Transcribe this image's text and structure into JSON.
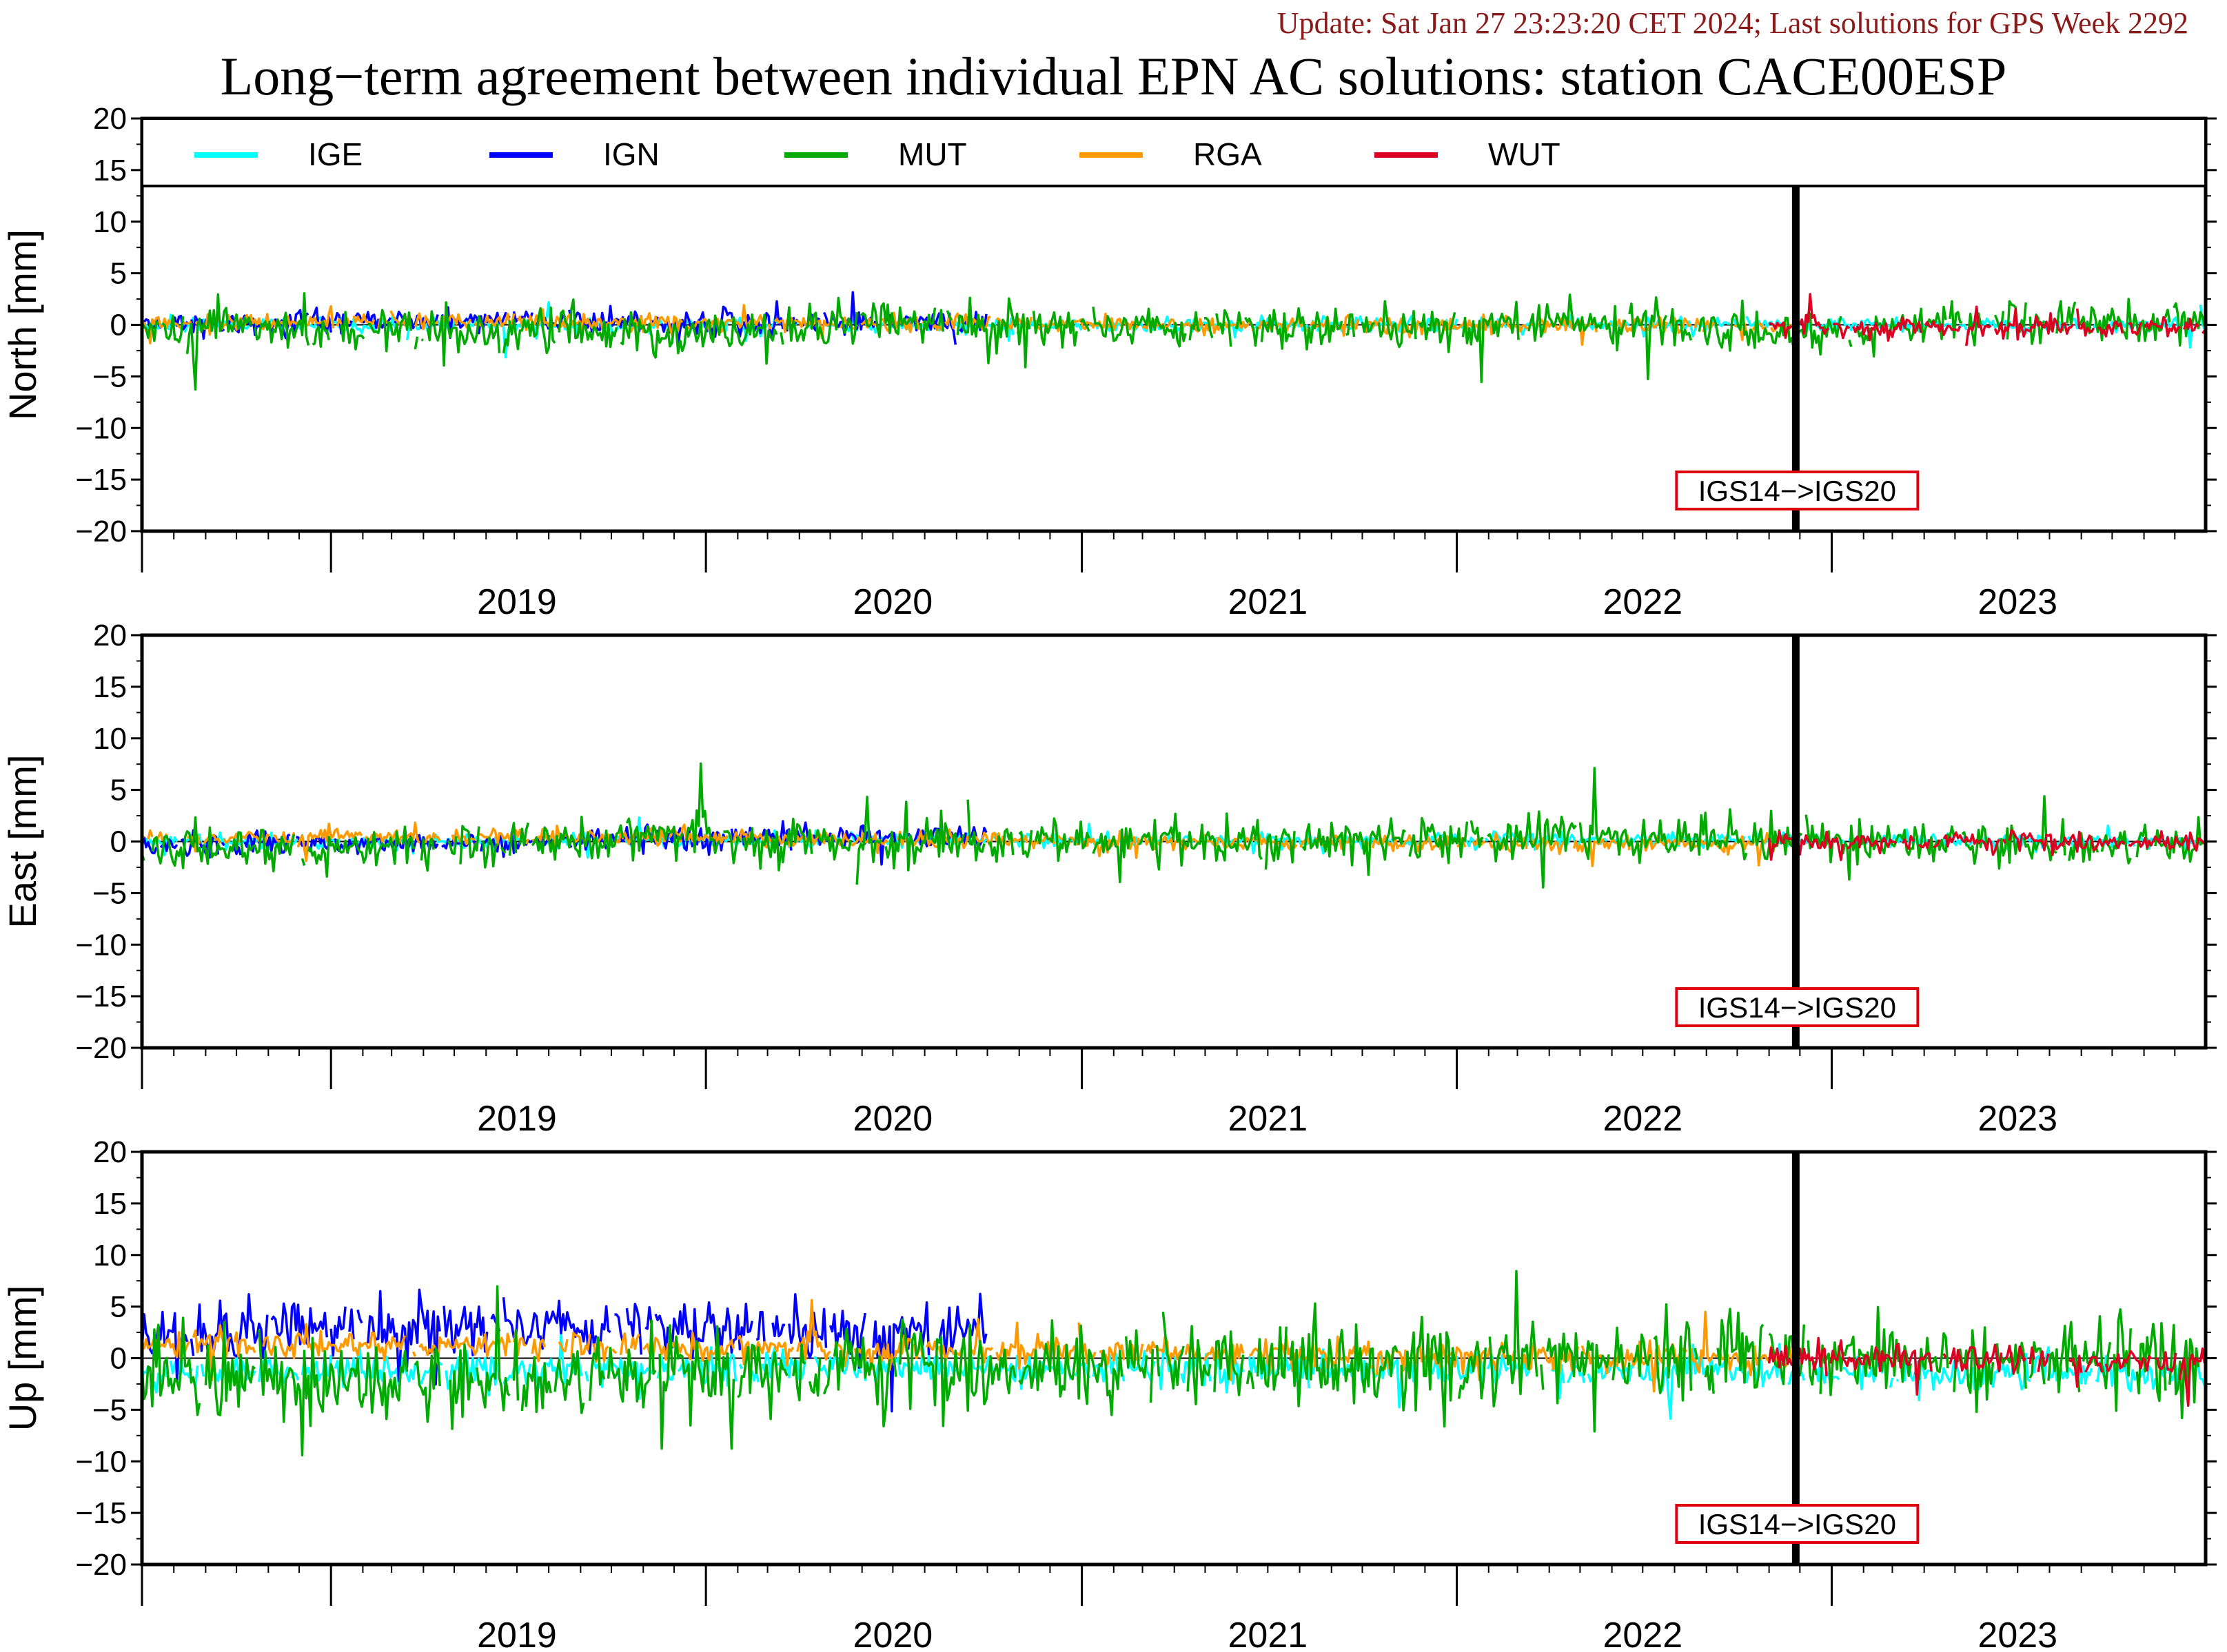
{
  "header": {
    "update": "Update: Sat Jan 27 23:23:20 CET 2024; Last solutions for GPS Week 2292",
    "title": "Long−term agreement between individual EPN AC solutions: station CACE00ESP"
  },
  "chart_data": {
    "type": "line",
    "title": "Long−term agreement between individual EPN AC solutions: station CACE00ESP",
    "xlabel": "",
    "x_range": [
      "2018-07",
      "2023-12"
    ],
    "year_labels": [
      "2019",
      "2020",
      "2021",
      "2022",
      "2023"
    ],
    "ylim": [
      -20,
      20
    ],
    "yticks": [
      "20",
      "15",
      "10",
      "5",
      "0",
      "−5",
      "−10",
      "−15",
      "−20"
    ],
    "grid": false,
    "legend_placement": "top",
    "reference_frame_change": {
      "date": "2022-11-27",
      "label": "IGS14−>IGS20"
    },
    "series_meta": [
      {
        "name": "IGE",
        "color": "#00ffff",
        "active": [
          "2018-07",
          "2023-12"
        ],
        "note": "small scatter, negative Up bias"
      },
      {
        "name": "IGN",
        "color": "#0000ff",
        "active": [
          "2018-07",
          "2020-09"
        ],
        "note": "positive Up bias ~ +3 mm"
      },
      {
        "name": "MUT",
        "color": "#00aa00",
        "active": [
          "2018-07",
          "2023-12"
        ],
        "note": "largest scatter"
      },
      {
        "name": "RGA",
        "color": "#ff9900",
        "active": [
          "2018-07",
          "2022-11"
        ],
        "note": "slight positive Up bias"
      },
      {
        "name": "WUT",
        "color": "#dd0022",
        "active": [
          "2022-11",
          "2023-12"
        ],
        "note": "after frame change"
      }
    ],
    "panels": [
      {
        "ylabel": "North [mm]",
        "series": [
          {
            "name": "IGE",
            "x": [
              "2019-06",
              "2020-06",
              "2021-06",
              "2022-06",
              "2023-06"
            ],
            "y": [
              0.0,
              0.0,
              0.0,
              0.0,
              0.0
            ]
          },
          {
            "name": "IGN",
            "x": [
              "2018-08",
              "2019-01",
              "2019-06",
              "2019-11",
              "2020-04",
              "2020-08"
            ],
            "y": [
              0.2,
              0.3,
              0.4,
              0.3,
              0.2,
              0.2
            ]
          },
          {
            "name": "MUT",
            "x": [
              "2018-08",
              "2019-03",
              "2019-11",
              "2020-06",
              "2021-06",
              "2022-06",
              "2022-11",
              "2023-06"
            ],
            "y": [
              -0.3,
              -0.5,
              -1.0,
              0.3,
              -0.2,
              0.3,
              -0.8,
              0.3
            ]
          },
          {
            "name": "RGA",
            "x": [
              "2018-08",
              "2019-06",
              "2020-06",
              "2021-06",
              "2022-06"
            ],
            "y": [
              0.2,
              0.3,
              0.2,
              0.0,
              -0.1
            ]
          },
          {
            "name": "WUT",
            "x": [
              "2022-12",
              "2023-06",
              "2023-12"
            ],
            "y": [
              -0.2,
              -0.3,
              -0.3
            ]
          }
        ]
      },
      {
        "ylabel": "East [mm]",
        "series": [
          {
            "name": "IGE",
            "x": [
              "2019-06",
              "2020-06",
              "2021-06",
              "2022-06",
              "2023-06"
            ],
            "y": [
              0.0,
              0.2,
              0.1,
              0.2,
              0.1
            ]
          },
          {
            "name": "IGN",
            "x": [
              "2018-08",
              "2019-01",
              "2019-06",
              "2019-11",
              "2020-04",
              "2020-08"
            ],
            "y": [
              -0.3,
              -0.2,
              0.0,
              0.3,
              0.5,
              0.3
            ]
          },
          {
            "name": "MUT",
            "x": [
              "2018-08",
              "2019-03",
              "2019-11",
              "2020-06",
              "2021-06",
              "2022-06",
              "2022-11",
              "2023-06"
            ],
            "y": [
              -0.5,
              -0.8,
              0.6,
              -0.3,
              0.2,
              0.4,
              0.3,
              -0.3
            ]
          },
          {
            "name": "RGA",
            "x": [
              "2018-08",
              "2019-06",
              "2020-06",
              "2021-06",
              "2022-06"
            ],
            "y": [
              0.4,
              0.5,
              0.2,
              0.0,
              -0.2
            ]
          },
          {
            "name": "WUT",
            "x": [
              "2022-12",
              "2023-06",
              "2023-12"
            ],
            "y": [
              -0.1,
              0.0,
              -0.1
            ]
          }
        ]
      },
      {
        "ylabel": "Up [mm]",
        "series": [
          {
            "name": "IGE",
            "x": [
              "2018-08",
              "2019-06",
              "2020-06",
              "2021-06",
              "2022-06",
              "2023-06"
            ],
            "y": [
              -1.5,
              -1.0,
              -0.8,
              -1.0,
              -1.2,
              -1.5
            ]
          },
          {
            "name": "IGN",
            "x": [
              "2018-08",
              "2019-01",
              "2019-06",
              "2019-11",
              "2020-04",
              "2020-08"
            ],
            "y": [
              2.5,
              3.0,
              3.5,
              3.0,
              3.0,
              2.5
            ]
          },
          {
            "name": "MUT",
            "x": [
              "2018-08",
              "2019-03",
              "2019-11",
              "2020-06",
              "2021-06",
              "2022-06",
              "2022-11",
              "2023-06"
            ],
            "y": [
              -1.5,
              -2.5,
              -1.5,
              -1.0,
              -1.0,
              0.5,
              0.0,
              0.0
            ]
          },
          {
            "name": "RGA",
            "x": [
              "2018-08",
              "2019-06",
              "2020-06",
              "2021-06",
              "2022-06"
            ],
            "y": [
              1.5,
              1.2,
              0.8,
              0.5,
              0.0
            ]
          },
          {
            "name": "WUT",
            "x": [
              "2022-12",
              "2023-06",
              "2023-12"
            ],
            "y": [
              0.0,
              -0.2,
              -0.3
            ]
          }
        ]
      }
    ]
  }
}
